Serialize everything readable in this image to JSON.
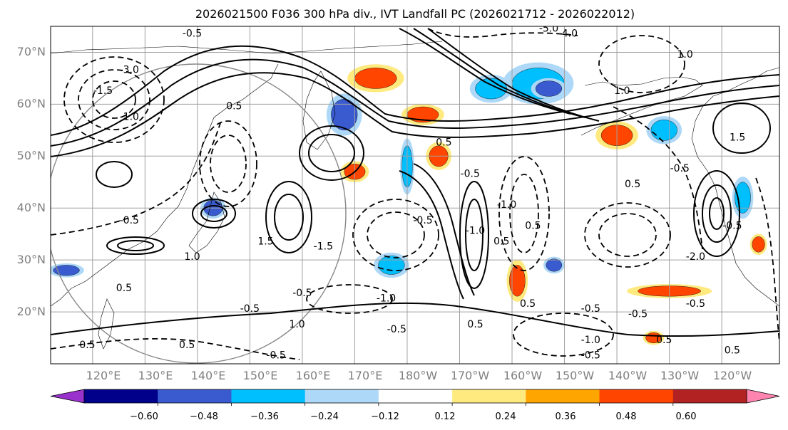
{
  "chart_data": {
    "type": "heatmap",
    "title": "2026021500 F036 300 hPa div., IVT Landfall PC (2026021712 - 2026022012)",
    "latitude_ticks": [
      "70°N",
      "60°N",
      "50°N",
      "40°N",
      "30°N",
      "20°N"
    ],
    "latitude_values": [
      70,
      60,
      50,
      40,
      30,
      20
    ],
    "longitude_ticks": [
      "120°E",
      "130°E",
      "140°E",
      "150°E",
      "160°E",
      "170°E",
      "180°W",
      "170°W",
      "160°W",
      "150°W",
      "140°W",
      "130°W",
      "120°W"
    ],
    "longitude_values": [
      120,
      130,
      140,
      150,
      160,
      170,
      180,
      190,
      200,
      210,
      220,
      230,
      240
    ],
    "lon_range": [
      112,
      251
    ],
    "lat_range": [
      10,
      75
    ],
    "colorbar": {
      "ticks": [
        "−0.60",
        "−0.48",
        "−0.36",
        "−0.24",
        "−0.12",
        "0.12",
        "0.24",
        "0.36",
        "0.48",
        "0.60"
      ],
      "boundaries": [
        -0.6,
        -0.48,
        -0.36,
        -0.24,
        -0.12,
        0.12,
        0.24,
        0.36,
        0.48,
        0.6
      ],
      "colors": [
        "#9932cc",
        "#00008b",
        "#3a5bd0",
        "#00bfff",
        "#add8f7",
        "#ffffff",
        "#ffea80",
        "#ffa500",
        "#ff4500",
        "#b22222",
        "#ff85b0"
      ],
      "extend": "both"
    },
    "shaded_regions": [
      {
        "name": "n-america-arctic-blue",
        "lon": 205,
        "lat": 64,
        "rlon": 5,
        "rlat": 3,
        "value": -0.36
      },
      {
        "name": "arctic-blue-core",
        "lon": 207,
        "lat": 63,
        "rlon": 2.5,
        "rlat": 1.5,
        "value": -0.48
      },
      {
        "name": "bering-blue",
        "lon": 196,
        "lat": 63,
        "rlon": 3,
        "rlat": 2,
        "value": -0.36
      },
      {
        "name": "okhotsk-red",
        "lon": 174,
        "lat": 65,
        "rlon": 4,
        "rlat": 2,
        "value": 0.36
      },
      {
        "name": "kamchatka-blue",
        "lon": 168,
        "lat": 58,
        "rlon": 2.5,
        "rlat": 3,
        "value": -0.48
      },
      {
        "name": "aleutian-red",
        "lon": 183,
        "lat": 58,
        "rlon": 3,
        "rlat": 1.5,
        "value": 0.36
      },
      {
        "name": "gulf-alaska-red",
        "lon": 220,
        "lat": 54,
        "rlon": 3,
        "rlat": 2,
        "value": 0.36
      },
      {
        "name": "gulf-alaska-blue",
        "lon": 229,
        "lat": 55,
        "rlon": 2.5,
        "rlat": 2,
        "value": -0.36
      },
      {
        "name": "subtropic-red-band",
        "lon": 230,
        "lat": 24,
        "rlon": 6,
        "rlat": 1,
        "value": 0.36
      },
      {
        "name": "westpac-blue",
        "lon": 177,
        "lat": 29,
        "rlon": 2.5,
        "rlat": 1.8,
        "value": -0.36
      },
      {
        "name": "central-blue",
        "lon": 208,
        "lat": 29,
        "rlon": 1.5,
        "rlat": 1.2,
        "value": -0.48
      },
      {
        "name": "central-red",
        "lon": 201,
        "lat": 26,
        "rlon": 1.5,
        "rlat": 3,
        "value": 0.36
      },
      {
        "name": "east-pac-blue",
        "lon": 244,
        "lat": 42,
        "rlon": 1.5,
        "rlat": 3,
        "value": -0.36
      },
      {
        "name": "east-pac-red",
        "lon": 247,
        "lat": 33,
        "rlon": 1.2,
        "rlat": 1.5,
        "value": 0.36
      },
      {
        "name": "japan-blue",
        "lon": 143,
        "lat": 40,
        "rlon": 1.8,
        "rlat": 1.5,
        "value": -0.48
      },
      {
        "name": "china-blue",
        "lon": 115,
        "lat": 28,
        "rlon": 2.5,
        "rlat": 1,
        "value": -0.48
      },
      {
        "name": "dateline-blue-streak",
        "lon": 180,
        "lat": 48,
        "rlon": 1,
        "rlat": 4,
        "value": -0.36
      },
      {
        "name": "dateline-red",
        "lon": 186,
        "lat": 50,
        "rlon": 1.8,
        "rlat": 2,
        "value": 0.36
      },
      {
        "name": "tropic-red",
        "lon": 227,
        "lat": 15,
        "rlon": 1.5,
        "rlat": 1,
        "value": 0.36
      },
      {
        "name": "kuril-red",
        "lon": 170,
        "lat": 47,
        "rlon": 2,
        "rlat": 1.5,
        "value": 0.36
      }
    ],
    "contour_labels": [
      {
        "text": "-0.5",
        "lon": 139,
        "lat": 73
      },
      {
        "text": "-5.0",
        "lon": 207,
        "lat": 74
      },
      {
        "text": "4.0",
        "lon": 211,
        "lat": 73
      },
      {
        "text": "1.0",
        "lon": 233,
        "lat": 69
      },
      {
        "text": "-3.0",
        "lon": 127,
        "lat": 66
      },
      {
        "text": "-1.5",
        "lon": 122,
        "lat": 62
      },
      {
        "text": "-1.0",
        "lon": 127,
        "lat": 57
      },
      {
        "text": "-0.5",
        "lon": 127,
        "lat": 37
      },
      {
        "text": "0.5",
        "lon": 147,
        "lat": 59
      },
      {
        "text": "-0.5",
        "lon": 192,
        "lat": 46
      },
      {
        "text": "0.5",
        "lon": 187,
        "lat": 52
      },
      {
        "text": "-1.0",
        "lon": 193,
        "lat": 35
      },
      {
        "text": "0.5",
        "lon": 198,
        "lat": 33
      },
      {
        "text": "-0.5",
        "lon": 183,
        "lat": 37
      },
      {
        "text": "1.5",
        "lon": 153,
        "lat": 33
      },
      {
        "text": "-1.5",
        "lon": 164,
        "lat": 32
      },
      {
        "text": "1.0",
        "lon": 139,
        "lat": 30
      },
      {
        "text": "-0.5",
        "lon": 160,
        "lat": 23
      },
      {
        "text": "0.5",
        "lon": 126,
        "lat": 24
      },
      {
        "text": "-1.0",
        "lon": 176,
        "lat": 22
      },
      {
        "text": "-0.5",
        "lon": 150,
        "lat": 20
      },
      {
        "text": "1.0",
        "lon": 159,
        "lat": 17
      },
      {
        "text": "0.5",
        "lon": 138,
        "lat": 13
      },
      {
        "text": "0.5",
        "lon": 119,
        "lat": 13
      },
      {
        "text": "-0.5",
        "lon": 155,
        "lat": 11
      },
      {
        "text": "-0.5",
        "lon": 178,
        "lat": 16
      },
      {
        "text": "0.5",
        "lon": 193,
        "lat": 17
      },
      {
        "text": "0.5",
        "lon": 203,
        "lat": 21
      },
      {
        "text": "-0.5",
        "lon": 215,
        "lat": 20
      },
      {
        "text": "-1.0",
        "lon": 215,
        "lat": 14
      },
      {
        "text": "-0.5",
        "lon": 215,
        "lat": 11
      },
      {
        "text": "-0.5",
        "lon": 224,
        "lat": 19
      },
      {
        "text": "-0.5",
        "lon": 235,
        "lat": 21
      },
      {
        "text": "0.5",
        "lon": 229,
        "lat": 14
      },
      {
        "text": "-0.5",
        "lon": 242,
        "lat": 36
      },
      {
        "text": "0.5",
        "lon": 242,
        "lat": 12
      },
      {
        "text": "1.5",
        "lon": 243,
        "lat": 53
      },
      {
        "text": "-0.5",
        "lon": 232,
        "lat": 47
      },
      {
        "text": "0.5",
        "lon": 223,
        "lat": 44
      },
      {
        "text": "1.0",
        "lon": 221,
        "lat": 62
      },
      {
        "text": "-2.0",
        "lon": 235,
        "lat": 30
      },
      {
        "text": "-1.0",
        "lon": 199,
        "lat": 40
      },
      {
        "text": "0.5",
        "lon": 204,
        "lat": 36
      }
    ]
  }
}
